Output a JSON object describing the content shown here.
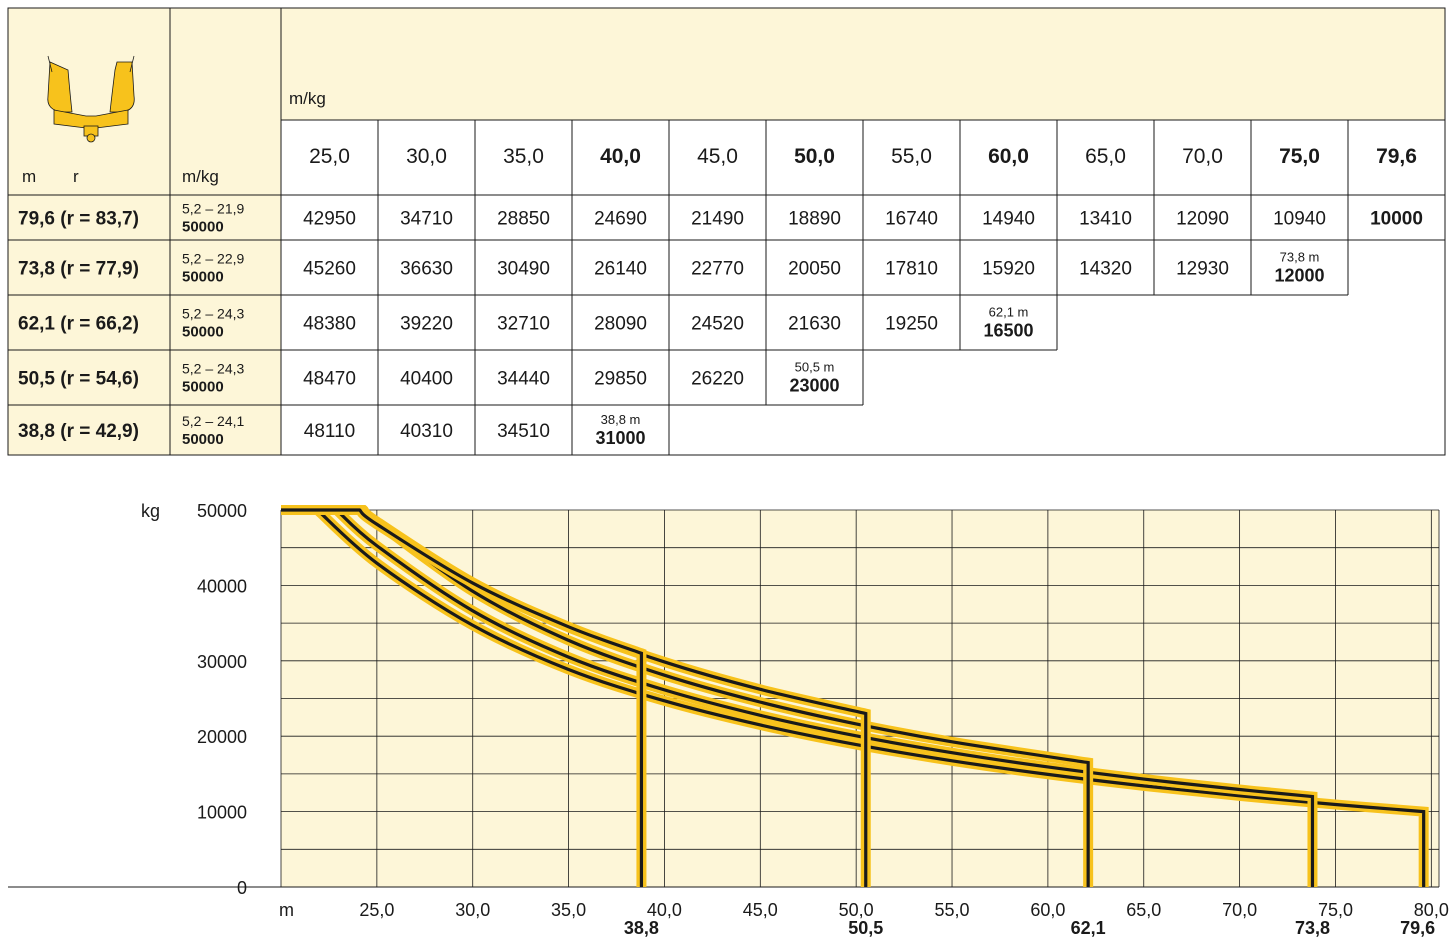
{
  "table": {
    "unit_label": "m/kg",
    "corner_m": "m",
    "corner_r": "r",
    "corner_mkg": "m/kg",
    "radius_headers": [
      {
        "label": "25,0",
        "bold": false
      },
      {
        "label": "30,0",
        "bold": false
      },
      {
        "label": "35,0",
        "bold": false
      },
      {
        "label": "40,0",
        "bold": true
      },
      {
        "label": "45,0",
        "bold": false
      },
      {
        "label": "50,0",
        "bold": true
      },
      {
        "label": "55,0",
        "bold": false
      },
      {
        "label": "60,0",
        "bold": true
      },
      {
        "label": "65,0",
        "bold": false
      },
      {
        "label": "70,0",
        "bold": false
      },
      {
        "label": "75,0",
        "bold": true
      },
      {
        "label": "79,6",
        "bold": true
      }
    ],
    "rows": [
      {
        "config": "79,6  (r = 83,7)",
        "range": "5,2 – 21,9",
        "max": "50000",
        "values": [
          "42950",
          "34710",
          "28850",
          "24690",
          "21490",
          "18890",
          "16740",
          "14940",
          "13410",
          "12090",
          "10940"
        ],
        "end": {
          "length": "",
          "value": "10000",
          "col": 11
        }
      },
      {
        "config": "73,8  (r = 77,9)",
        "range": "5,2 – 22,9",
        "max": "50000",
        "values": [
          "45260",
          "36630",
          "30490",
          "26140",
          "22770",
          "20050",
          "17810",
          "15920",
          "14320",
          "12930"
        ],
        "end": {
          "length": "73,8 m",
          "value": "12000",
          "col": 10
        }
      },
      {
        "config": "62,1  (r = 66,2)",
        "range": "5,2 – 24,3",
        "max": "50000",
        "values": [
          "48380",
          "39220",
          "32710",
          "28090",
          "24520",
          "21630",
          "19250"
        ],
        "end": {
          "length": "62,1 m",
          "value": "16500",
          "col": 7
        }
      },
      {
        "config": "50,5  (r = 54,6)",
        "range": "5,2 – 24,3",
        "max": "50000",
        "values": [
          "48470",
          "40400",
          "34440",
          "29850",
          "26220"
        ],
        "end": {
          "length": "50,5 m",
          "value": "23000",
          "col": 5
        }
      },
      {
        "config": "38,8  (r = 42,9)",
        "range": "5,2 – 24,1",
        "max": "50000",
        "values": [
          "48110",
          "40310",
          "34510"
        ],
        "end": {
          "length": "38,8 m",
          "value": "31000",
          "col": 3
        }
      }
    ]
  },
  "chart_data": {
    "type": "line",
    "ylabel": "kg",
    "xlabel": "m",
    "xlim": [
      20,
      80.4
    ],
    "ylim": [
      0,
      50000
    ],
    "x_ticks": [
      "25,0",
      "30,0",
      "35,0",
      "40,0",
      "45,0",
      "50,0",
      "55,0",
      "60,0",
      "65,0",
      "70,0",
      "75,0",
      "80,0"
    ],
    "x_tick_values": [
      25,
      30,
      35,
      40,
      45,
      50,
      55,
      60,
      65,
      70,
      75,
      80
    ],
    "y_ticks": [
      "50000",
      "40000",
      "30000",
      "20000",
      "10000",
      "0"
    ],
    "y_tick_values": [
      50000,
      40000,
      30000,
      20000,
      10000,
      0
    ],
    "end_labels": [
      "38,8",
      "50,5",
      "62,1",
      "73,8",
      "79,6"
    ],
    "end_label_values": [
      38.8,
      50.5,
      62.1,
      73.8,
      79.6
    ],
    "series": [
      {
        "x": [
          24.1,
          25,
          30,
          35,
          38.8
        ],
        "y": [
          50000,
          48110,
          40310,
          34510,
          31000
        ]
      },
      {
        "x": [
          24.3,
          25,
          30,
          35,
          40,
          45,
          50.5
        ],
        "y": [
          50000,
          48470,
          40400,
          34440,
          29850,
          26220,
          23000
        ]
      },
      {
        "x": [
          24.3,
          25,
          30,
          35,
          40,
          45,
          50,
          55,
          62.1
        ],
        "y": [
          50000,
          48380,
          39220,
          32710,
          28090,
          24520,
          21630,
          19250,
          16500
        ]
      },
      {
        "x": [
          22.9,
          25,
          30,
          35,
          40,
          45,
          50,
          55,
          60,
          65,
          70,
          73.8
        ],
        "y": [
          50000,
          45260,
          36630,
          30490,
          26140,
          22770,
          20050,
          17810,
          15920,
          14320,
          12930,
          12000
        ]
      },
      {
        "x": [
          21.9,
          25,
          30,
          35,
          40,
          45,
          50,
          55,
          60,
          65,
          70,
          75,
          79.6
        ],
        "y": [
          50000,
          42950,
          34710,
          28850,
          24690,
          21490,
          18890,
          16740,
          14940,
          13410,
          12090,
          10940,
          10000
        ]
      }
    ],
    "colors": {
      "band": "#f7c21c",
      "line": "#1a1a1a",
      "fill": "#fdf6d8",
      "grid": "#1a1a1a"
    }
  }
}
